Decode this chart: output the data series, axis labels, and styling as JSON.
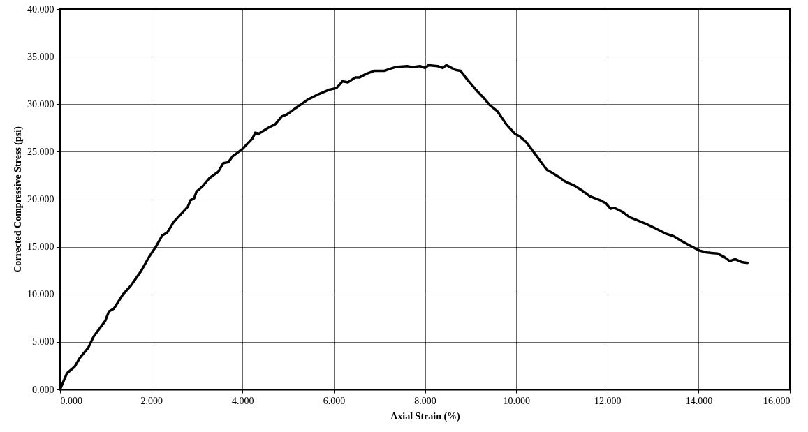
{
  "chart_data": {
    "type": "line",
    "xlabel": "Axial Strain (%)",
    "ylabel": "Corrected Compressive Stress (psi)",
    "xlim": [
      0,
      16
    ],
    "ylim": [
      0,
      40
    ],
    "xticks": [
      {
        "value": 0,
        "label": "0.000"
      },
      {
        "value": 2,
        "label": "2.000"
      },
      {
        "value": 4,
        "label": "4.000"
      },
      {
        "value": 6,
        "label": "6.000"
      },
      {
        "value": 8,
        "label": "8.000"
      },
      {
        "value": 10,
        "label": "10.000"
      },
      {
        "value": 12,
        "label": "12.000"
      },
      {
        "value": 14,
        "label": "14.000"
      },
      {
        "value": 16,
        "label": "16.000"
      }
    ],
    "yticks": [
      {
        "value": 0,
        "label": "0.000"
      },
      {
        "value": 5,
        "label": "5.000"
      },
      {
        "value": 10,
        "label": "10.000"
      },
      {
        "value": 15,
        "label": "15.000"
      },
      {
        "value": 20,
        "label": "20.000"
      },
      {
        "value": 25,
        "label": "25.000"
      },
      {
        "value": 30,
        "label": "30.000"
      },
      {
        "value": 35,
        "label": "35.000"
      },
      {
        "value": 40,
        "label": "40.000"
      }
    ],
    "grid": true,
    "marker": "none",
    "line_style": "solid",
    "series": [
      {
        "color": "#000000",
        "x": [
          0,
          0.15,
          0.32,
          0.43,
          0.62,
          0.74,
          0.99,
          1.07,
          1.18,
          1.38,
          1.55,
          1.77,
          1.96,
          2.1,
          2.24,
          2.35,
          2.49,
          2.8,
          2.86,
          2.94,
          2.99,
          3.11,
          3.27,
          3.47,
          3.58,
          3.69,
          3.78,
          4.0,
          4.14,
          4.22,
          4.28,
          4.36,
          4.56,
          4.72,
          4.86,
          4.97,
          5.17,
          5.44,
          5.69,
          5.89,
          6.06,
          6.19,
          6.31,
          6.47,
          6.56,
          6.72,
          6.89,
          7.11,
          7.22,
          7.36,
          7.61,
          7.72,
          7.89,
          8.0,
          8.08,
          8.28,
          8.39,
          8.47,
          8.67,
          8.78,
          8.94,
          9.14,
          9.28,
          9.42,
          9.58,
          9.78,
          9.97,
          10.08,
          10.22,
          10.44,
          10.67,
          10.78,
          10.95,
          11.06,
          11.29,
          11.45,
          11.62,
          11.84,
          11.96,
          12.07,
          12.15,
          12.32,
          12.49,
          12.6,
          12.85,
          13.07,
          13.27,
          13.46,
          13.63,
          13.82,
          14.02,
          14.18,
          14.41,
          14.57,
          14.68,
          14.8,
          14.94,
          15.07
        ],
        "values": [
          0,
          1.7,
          2.4,
          3.3,
          4.4,
          5.6,
          7.2,
          8.2,
          8.5,
          10.0,
          10.9,
          12.4,
          14.0,
          15.0,
          16.2,
          16.5,
          17.6,
          19.2,
          19.9,
          20.1,
          20.8,
          21.3,
          22.2,
          22.9,
          23.8,
          23.9,
          24.5,
          25.3,
          26.0,
          26.4,
          27.0,
          26.9,
          27.5,
          27.9,
          28.7,
          28.9,
          29.6,
          30.5,
          31.1,
          31.5,
          31.7,
          32.4,
          32.3,
          32.8,
          32.8,
          33.2,
          33.5,
          33.5,
          33.7,
          33.9,
          34.0,
          33.9,
          34.0,
          33.8,
          34.1,
          34.0,
          33.8,
          34.1,
          33.6,
          33.5,
          32.5,
          31.4,
          30.7,
          29.9,
          29.3,
          27.9,
          26.9,
          26.6,
          26.0,
          24.6,
          23.1,
          22.8,
          22.3,
          21.9,
          21.4,
          20.9,
          20.3,
          19.9,
          19.6,
          19.0,
          19.1,
          18.7,
          18.1,
          17.9,
          17.4,
          16.9,
          16.4,
          16.1,
          15.6,
          15.1,
          14.6,
          14.4,
          14.3,
          13.9,
          13.5,
          13.7,
          13.4,
          13.3
        ]
      }
    ]
  }
}
